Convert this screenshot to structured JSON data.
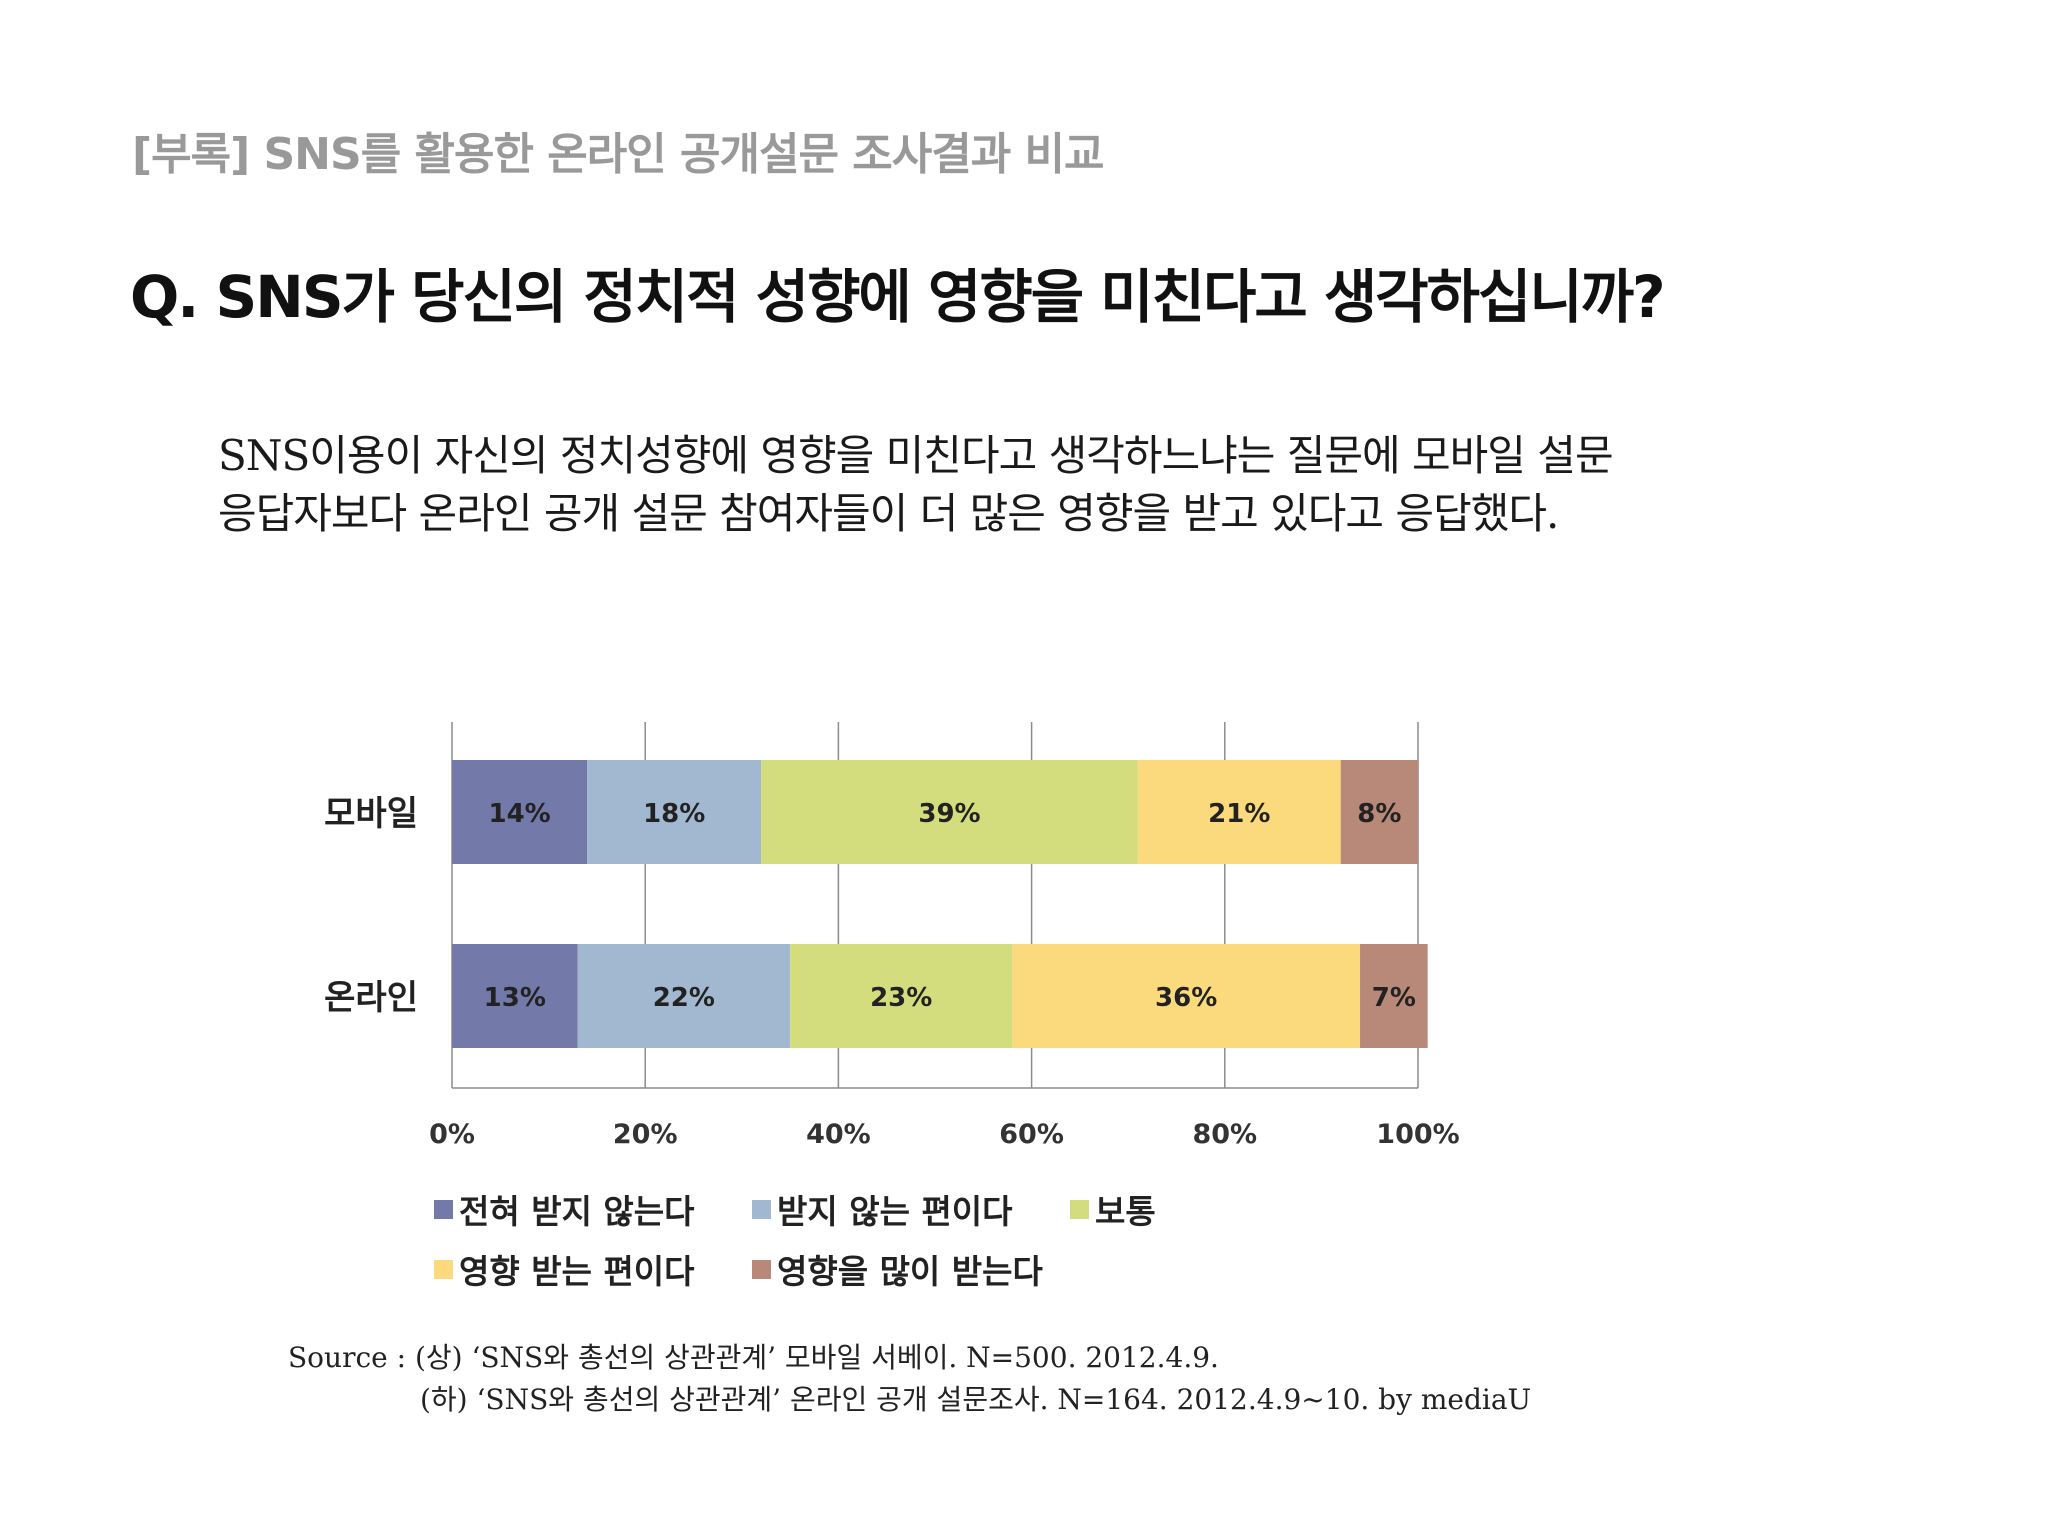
{
  "header": {
    "label": "[부록] SNS를 활용한 온라인 공개설문 조사결과 비교"
  },
  "question": "Q. SNS가 당신의 정치적 성향에 영향을 미친다고 생각하십니까?",
  "summary": [
    "SNS이용이 자신의 정치성향에 영향을 미친다고 생각하느냐는 질문에 모바일 설문",
    "응답자보다 온라인 공개 설문 참여자들이 더 많은 영향을 받고 있다고 응답했다."
  ],
  "chart_data": {
    "type": "bar",
    "orientation": "horizontal",
    "stacked": true,
    "percent": true,
    "categories": [
      "모바일",
      "온라인"
    ],
    "series": [
      {
        "name": "전혀 받지 않는다",
        "values": [
          14,
          13
        ],
        "labels": [
          "14%",
          "13%"
        ],
        "color": "#7379a8"
      },
      {
        "name": "받지 않는 편이다",
        "values": [
          18,
          22
        ],
        "labels": [
          "18%",
          "22%"
        ],
        "color": "#a2b8d0"
      },
      {
        "name": "보통",
        "values": [
          39,
          23
        ],
        "labels": [
          "39%",
          "23%"
        ],
        "color": "#d3dd7d"
      },
      {
        "name": "영향 받는 편이다",
        "values": [
          21,
          36
        ],
        "labels": [
          "21%",
          "36%"
        ],
        "color": "#fbd97d"
      },
      {
        "name": "영향을 많이 받는다",
        "values": [
          8,
          7
        ],
        "labels": [
          "8%",
          "7%"
        ],
        "color": "#b88878"
      }
    ],
    "x_ticks": [
      "0%",
      "20%",
      "40%",
      "60%",
      "80%",
      "100%"
    ],
    "xlim": [
      0,
      100
    ],
    "grid": true,
    "legend_position": "bottom"
  },
  "source": {
    "line1": "Source : (상) ‘SNS와 총선의 상관관계’ 모바일 서베이. N=500. 2012.4.9.",
    "line2": "(하) ‘SNS와 총선의 상관관계’ 온라인 공개 설문조사. N=164. 2012.4.9~10.    by mediaU"
  }
}
